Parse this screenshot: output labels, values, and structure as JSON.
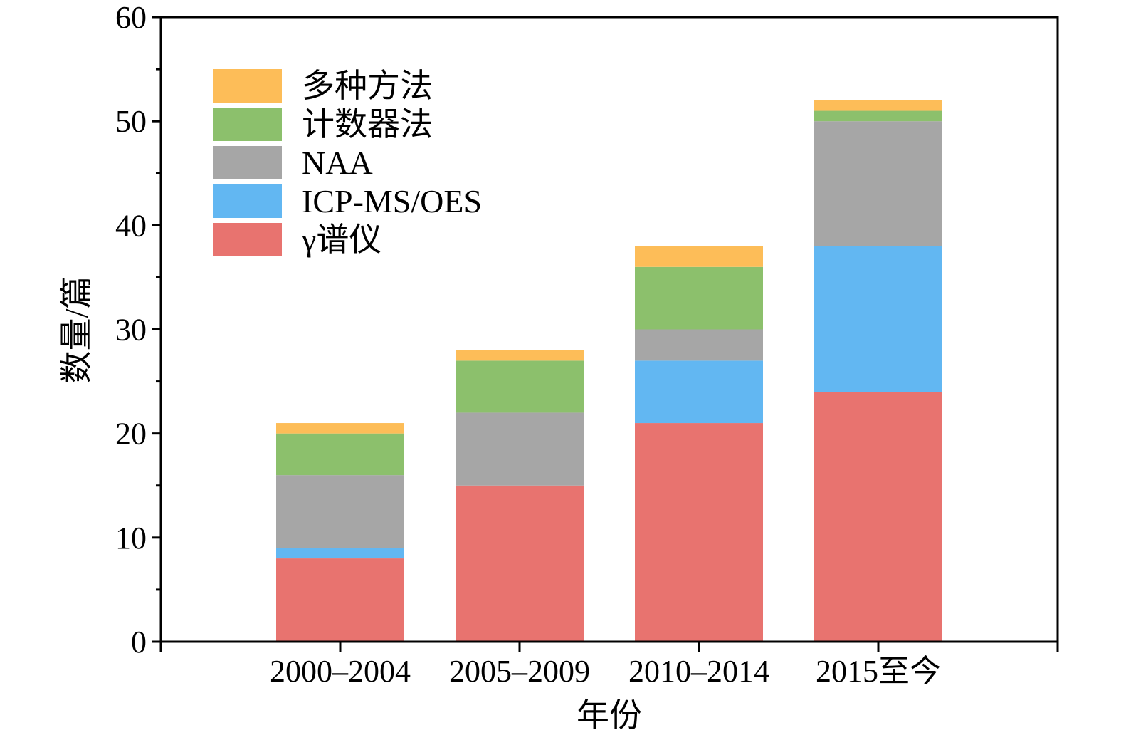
{
  "chart_data": {
    "type": "bar",
    "stacked": true,
    "title": "",
    "xlabel": "年份",
    "ylabel": "数量/篇",
    "ylim": [
      0,
      60
    ],
    "yticks": [
      "0",
      "10",
      "20",
      "30",
      "40",
      "50",
      "60"
    ],
    "ytick_values": [
      0,
      10,
      20,
      30,
      40,
      50,
      60
    ],
    "categories": [
      "2000–2004",
      "2005–2009",
      "2010–2014",
      "2015至今"
    ],
    "series": [
      {
        "name": "γ谱仪",
        "color": "#e8736f",
        "values": [
          8,
          15,
          21,
          24
        ]
      },
      {
        "name": "ICP-MS/OES",
        "color": "#62b7f2",
        "values": [
          1,
          0,
          6,
          14
        ]
      },
      {
        "name": "NAA",
        "color": "#a6a6a6",
        "values": [
          7,
          7,
          3,
          12
        ]
      },
      {
        "name": "计数器法",
        "color": "#8cc06c",
        "values": [
          4,
          5,
          6,
          1
        ]
      },
      {
        "name": "多种方法",
        "color": "#fdbd58",
        "values": [
          1,
          1,
          2,
          1
        ]
      }
    ],
    "legend_position": "top-left",
    "grid": false
  }
}
